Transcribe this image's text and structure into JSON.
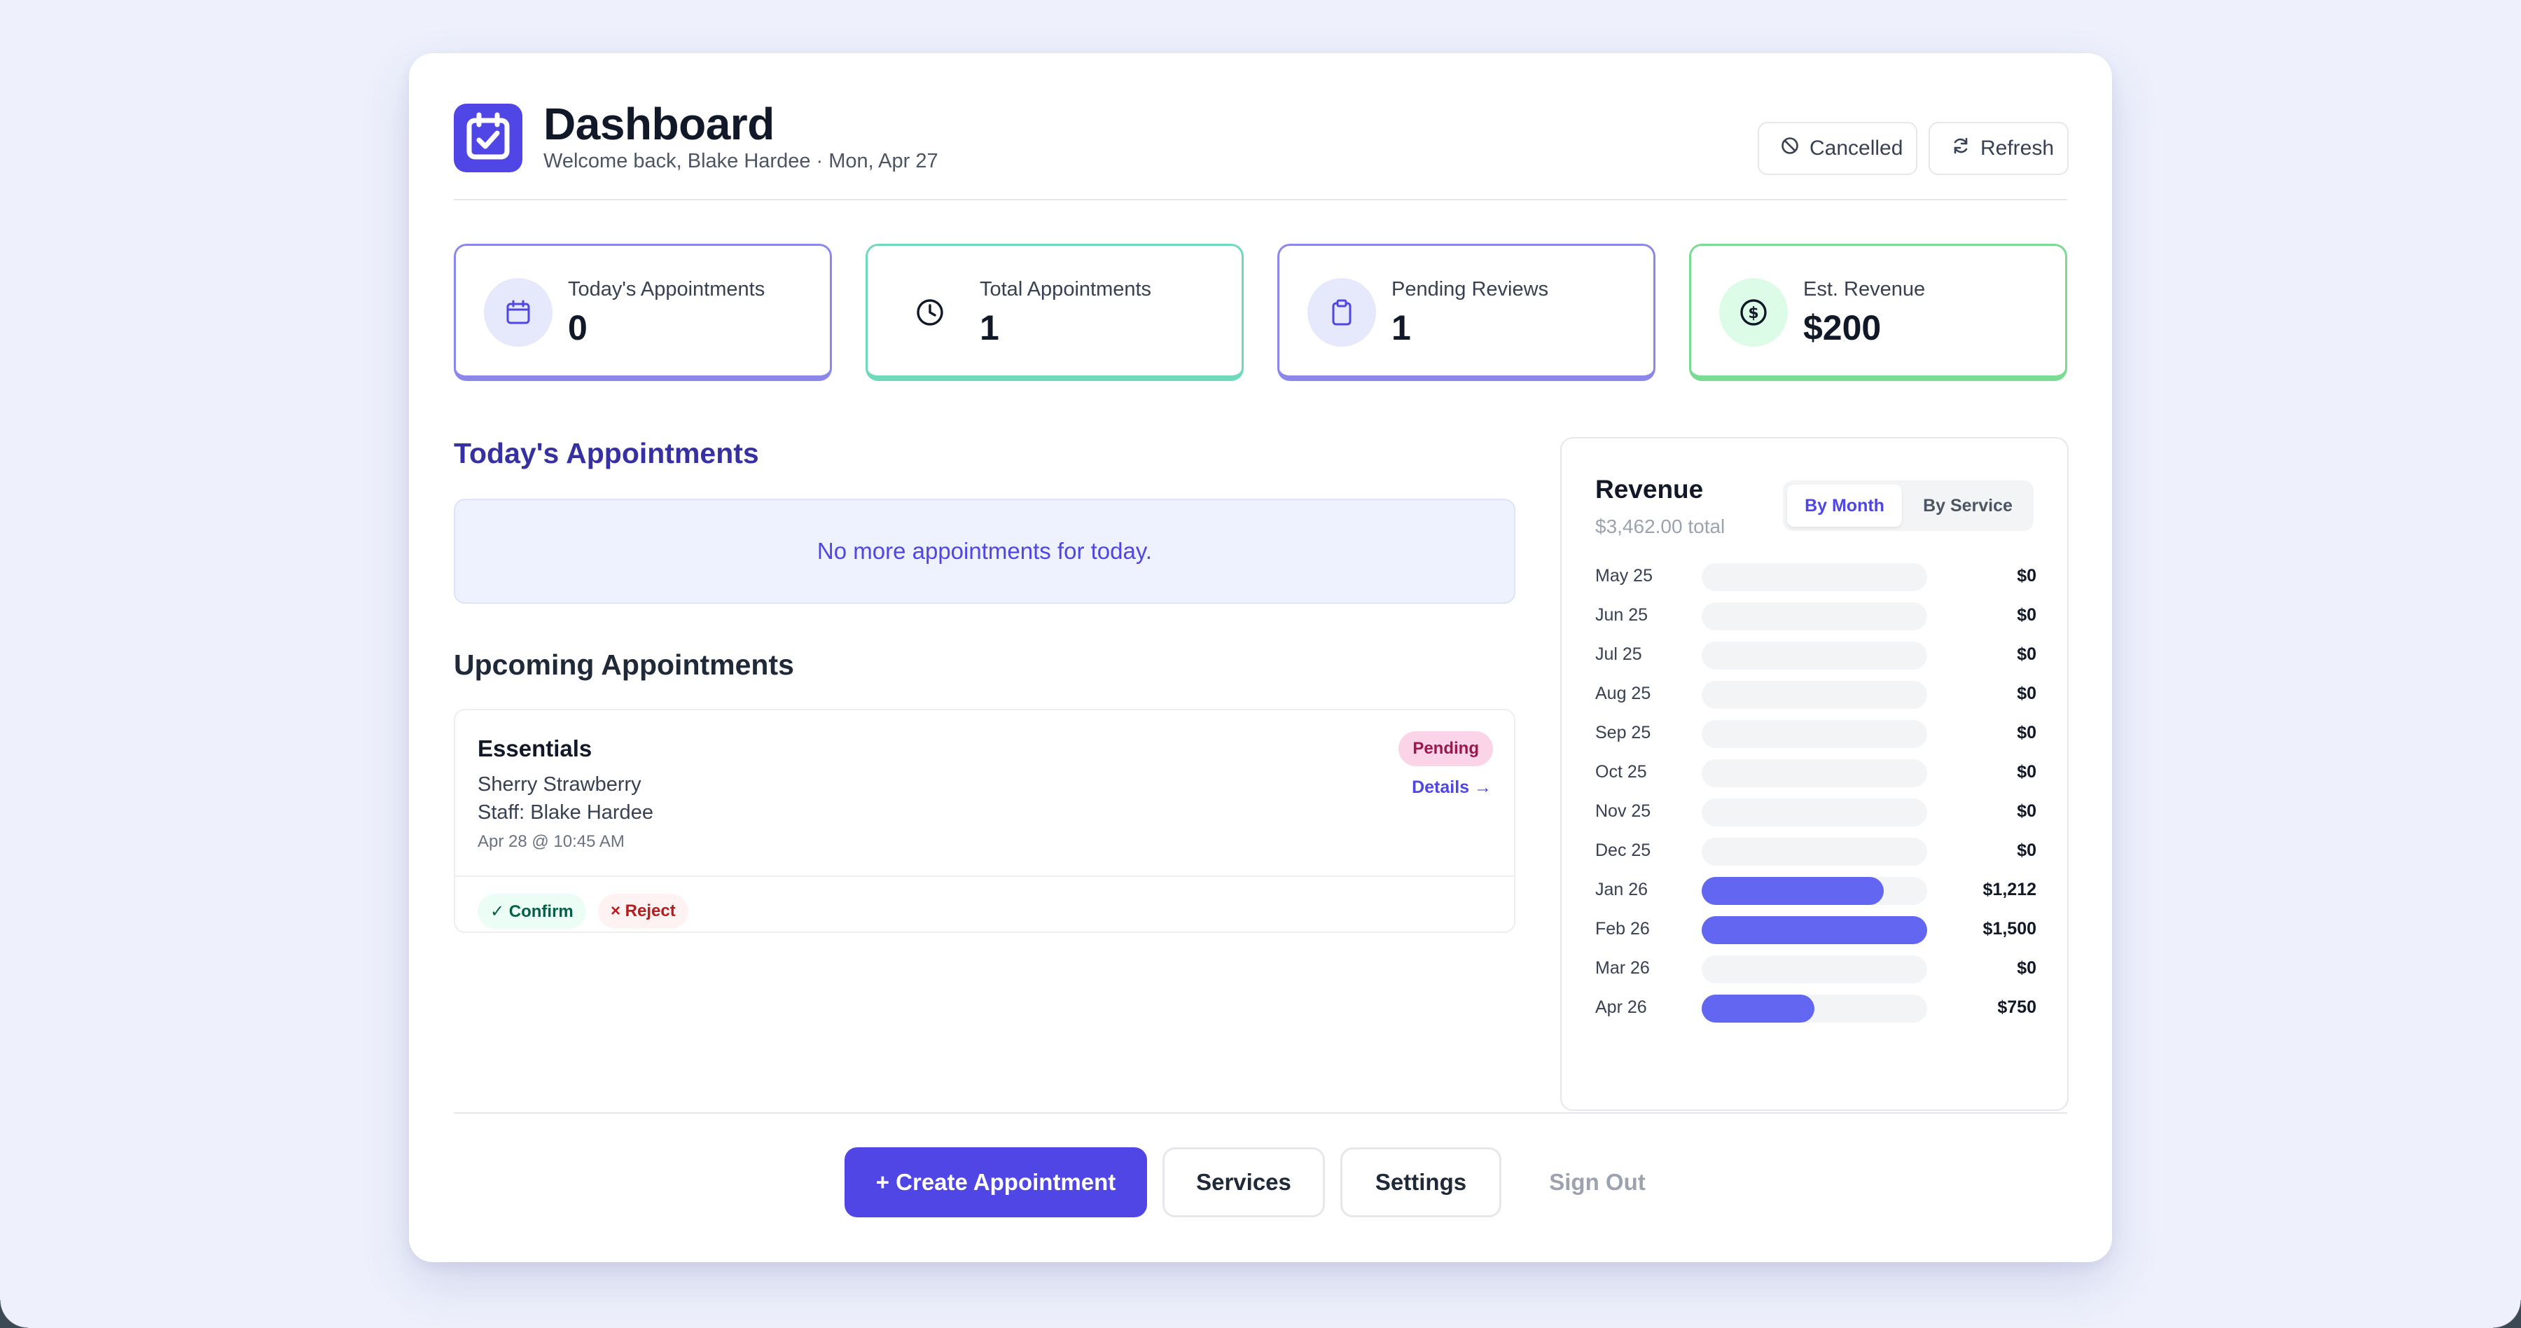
{
  "header": {
    "title": "Dashboard",
    "subtitle": "Welcome back, Blake Hardee · Mon, Apr 27",
    "cancelled_label": "Cancelled",
    "refresh_label": "Refresh"
  },
  "stats": [
    {
      "label": "Today's Appointments",
      "value": "0",
      "icon": "calendar-icon"
    },
    {
      "label": "Total Appointments",
      "value": "1",
      "icon": "clock-icon"
    },
    {
      "label": "Pending Reviews",
      "value": "1",
      "icon": "clipboard-icon"
    },
    {
      "label": "Est. Revenue",
      "value": "$200",
      "icon": "dollar-icon"
    }
  ],
  "today": {
    "heading": "Today's Appointments",
    "empty_text": "No more appointments for today."
  },
  "upcoming": {
    "heading": "Upcoming Appointments",
    "items": [
      {
        "service": "Essentials",
        "client": "Sherry Strawberry",
        "staff": "Staff: Blake Hardee",
        "when": "Apr 28 @ 10:45 AM",
        "status": "Pending",
        "details_label": "Details →",
        "confirm_label": "✓ Confirm",
        "reject_label": "× Reject"
      }
    ]
  },
  "revenue": {
    "title": "Revenue",
    "total": "$3,462.00 total",
    "tabs": [
      "By Month",
      "By Service"
    ],
    "active_tab": "By Month",
    "accent": "#6366f1",
    "rows": [
      {
        "month": "May 25",
        "value": "$0",
        "fraction": 0
      },
      {
        "month": "Jun 25",
        "value": "$0",
        "fraction": 0
      },
      {
        "month": "Jul 25",
        "value": "$0",
        "fraction": 0
      },
      {
        "month": "Aug 25",
        "value": "$0",
        "fraction": 0
      },
      {
        "month": "Sep 25",
        "value": "$0",
        "fraction": 0
      },
      {
        "month": "Oct 25",
        "value": "$0",
        "fraction": 0
      },
      {
        "month": "Nov 25",
        "value": "$0",
        "fraction": 0
      },
      {
        "month": "Dec 25",
        "value": "$0",
        "fraction": 0
      },
      {
        "month": "Jan 26",
        "value": "$1,212",
        "fraction": 0.808
      },
      {
        "month": "Feb 26",
        "value": "$1,500",
        "fraction": 1
      },
      {
        "month": "Mar 26",
        "value": "$0",
        "fraction": 0
      },
      {
        "month": "Apr 26",
        "value": "$750",
        "fraction": 0.5
      }
    ]
  },
  "footer": {
    "create_label": "+ Create Appointment",
    "services_label": "Services",
    "settings_label": "Settings",
    "signout_label": "Sign Out"
  },
  "colors": {
    "primary": "#4f46e5",
    "pending_badge": "#fbd5e7"
  }
}
